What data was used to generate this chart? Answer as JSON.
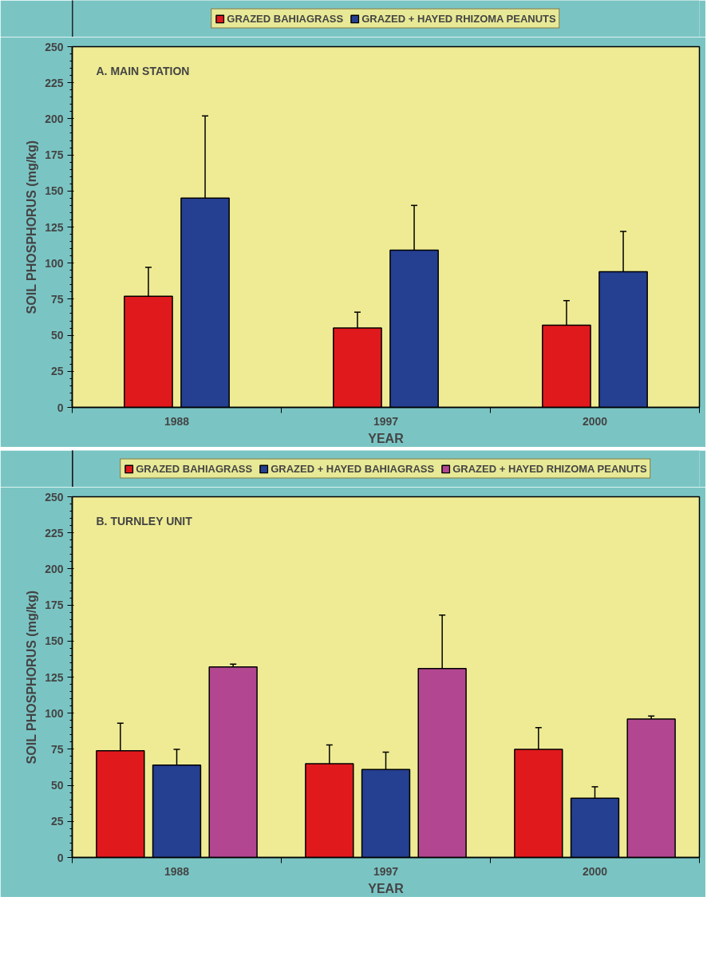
{
  "chart_data": [
    {
      "type": "bar",
      "title": "A. MAIN STATION",
      "xlabel": "YEAR",
      "ylabel": "SOIL PHOSPHORUS (mg/kg)",
      "categories": [
        "1988",
        "1997",
        "2000"
      ],
      "ylim": [
        0,
        250
      ],
      "yticks": [
        0,
        25,
        50,
        75,
        100,
        125,
        150,
        175,
        200,
        225,
        250
      ],
      "grid": false,
      "legend": "top",
      "series": [
        {
          "name": "GRAZED BAHIAGRASS",
          "color": "#e0191c",
          "values": [
            77,
            55,
            57
          ],
          "errors": [
            [
              77,
              97
            ],
            [
              55,
              66
            ],
            [
              57,
              74
            ]
          ]
        },
        {
          "name": "GRAZED + HAYED RHIZOMA PEANUTS",
          "color": "#253f91",
          "values": [
            145,
            109,
            94
          ],
          "errors": [
            [
              145,
              202
            ],
            [
              109,
              140
            ],
            [
              94,
              122
            ]
          ]
        }
      ]
    },
    {
      "type": "bar",
      "title": "B. TURNLEY UNIT",
      "xlabel": "YEAR",
      "ylabel": "SOIL PHOSPHORUS (mg/kg)",
      "categories": [
        "1988",
        "1997",
        "2000"
      ],
      "ylim": [
        0,
        250
      ],
      "yticks": [
        0,
        25,
        50,
        75,
        100,
        125,
        150,
        175,
        200,
        225,
        250
      ],
      "grid": false,
      "legend": "top",
      "series": [
        {
          "name": "GRAZED BAHIAGRASS",
          "color": "#e0191c",
          "values": [
            74,
            65,
            75
          ],
          "errors": [
            [
              74,
              93
            ],
            [
              65,
              78
            ],
            [
              75,
              90
            ]
          ]
        },
        {
          "name": "GRAZED + HAYED BAHIAGRASS",
          "color": "#253f91",
          "values": [
            64,
            61,
            41
          ],
          "errors": [
            [
              64,
              75
            ],
            [
              61,
              73
            ],
            [
              41,
              49
            ]
          ]
        },
        {
          "name": "GRAZED + HAYED RHIZOMA PEANUTS",
          "color": "#b24690",
          "values": [
            132,
            131,
            96
          ],
          "errors": [
            [
              132,
              134
            ],
            [
              131,
              168
            ],
            [
              96,
              98
            ]
          ]
        }
      ]
    }
  ]
}
